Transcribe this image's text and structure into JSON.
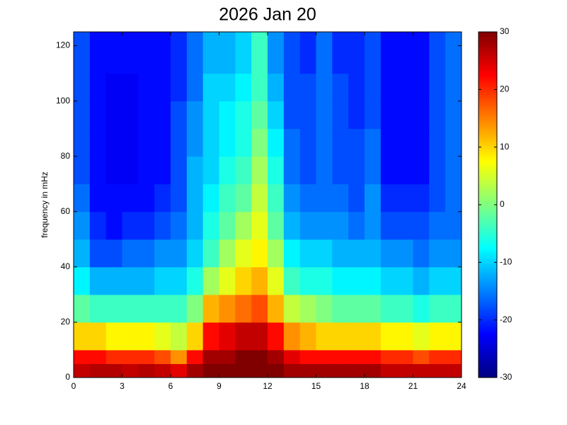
{
  "chart_data": {
    "type": "heatmap",
    "title": "2026 Jan 20",
    "ylabel": "frequency in mHz",
    "colormap": "jet",
    "xbins": [
      0,
      1,
      2,
      3,
      4,
      5,
      6,
      7,
      8,
      9,
      10,
      11,
      12,
      13,
      14,
      15,
      16,
      17,
      18,
      19,
      20,
      21,
      22,
      23,
      24
    ],
    "ybins": [
      0,
      5,
      10,
      20,
      30,
      40,
      50,
      60,
      70,
      80,
      90,
      100,
      110,
      125
    ],
    "values": [
      [
        26,
        22,
        10,
        -2,
        -8,
        -12,
        -14,
        -16,
        -18,
        -18,
        -18,
        -18,
        -18
      ],
      [
        27,
        22,
        10,
        -4,
        -12,
        -18,
        -20,
        -22,
        -22,
        -22,
        -22,
        -22,
        -22
      ],
      [
        27,
        20,
        8,
        -4,
        -12,
        -18,
        -22,
        -22,
        -23,
        -23,
        -23,
        -23,
        -22
      ],
      [
        26,
        20,
        8,
        -4,
        -12,
        -16,
        -20,
        -22,
        -23,
        -23,
        -23,
        -23,
        -22
      ],
      [
        27,
        20,
        8,
        -4,
        -12,
        -16,
        -20,
        -22,
        -22,
        -22,
        -22,
        -22,
        -22
      ],
      [
        26,
        18,
        6,
        -4,
        -10,
        -14,
        -18,
        -20,
        -22,
        -22,
        -22,
        -22,
        -22
      ],
      [
        24,
        14,
        4,
        -4,
        -10,
        -14,
        -16,
        -18,
        -18,
        -18,
        -18,
        -20,
        -20
      ],
      [
        28,
        22,
        10,
        0,
        -6,
        -10,
        -12,
        -12,
        -12,
        -14,
        -14,
        -16,
        -16
      ],
      [
        30,
        28,
        22,
        12,
        2,
        -4,
        -6,
        -8,
        -10,
        -10,
        -10,
        -10,
        -12
      ],
      [
        30,
        28,
        24,
        14,
        6,
        2,
        -2,
        -4,
        -6,
        -8,
        -8,
        -10,
        -12
      ],
      [
        30,
        30,
        26,
        16,
        10,
        6,
        2,
        -2,
        -4,
        -6,
        -6,
        -8,
        -10
      ],
      [
        30,
        30,
        26,
        18,
        12,
        8,
        6,
        4,
        2,
        0,
        -2,
        -4,
        -4
      ],
      [
        30,
        28,
        22,
        12,
        6,
        2,
        -2,
        -4,
        -6,
        -8,
        -10,
        -12,
        -14
      ],
      [
        28,
        24,
        14,
        4,
        -4,
        -8,
        -12,
        -14,
        -16,
        -16,
        -18,
        -18,
        -18
      ],
      [
        28,
        22,
        12,
        2,
        -6,
        -10,
        -14,
        -16,
        -18,
        -18,
        -18,
        -18,
        -20
      ],
      [
        28,
        22,
        10,
        0,
        -6,
        -10,
        -14,
        -16,
        -16,
        -16,
        -16,
        -16,
        -16
      ],
      [
        28,
        22,
        10,
        -2,
        -8,
        -12,
        -14,
        -16,
        -18,
        -18,
        -18,
        -18,
        -20
      ],
      [
        28,
        22,
        10,
        -2,
        -8,
        -12,
        -16,
        -18,
        -18,
        -18,
        -20,
        -20,
        -20
      ],
      [
        28,
        22,
        10,
        -2,
        -8,
        -12,
        -14,
        -14,
        -16,
        -16,
        -18,
        -18,
        -18
      ],
      [
        26,
        20,
        8,
        -4,
        -10,
        -14,
        -18,
        -20,
        -22,
        -22,
        -22,
        -22,
        -22
      ],
      [
        26,
        20,
        8,
        -4,
        -10,
        -14,
        -18,
        -20,
        -22,
        -22,
        -22,
        -22,
        -22
      ],
      [
        26,
        18,
        6,
        -6,
        -12,
        -16,
        -18,
        -20,
        -22,
        -22,
        -22,
        -22,
        -22
      ],
      [
        26,
        20,
        8,
        -4,
        -10,
        -14,
        -16,
        -18,
        -18,
        -18,
        -18,
        -18,
        -18
      ],
      [
        26,
        20,
        8,
        -4,
        -10,
        -14,
        -16,
        -16,
        -16,
        -16,
        -16,
        -16,
        -16
      ]
    ],
    "xlim": [
      0,
      24
    ],
    "xticks": [
      0,
      3,
      6,
      9,
      12,
      15,
      18,
      21,
      24
    ],
    "ylim": [
      0,
      125
    ],
    "yticks": [
      0,
      20,
      40,
      60,
      80,
      100,
      120
    ],
    "clim": [
      -30,
      30
    ],
    "cticks": [
      -30,
      -20,
      -10,
      0,
      10,
      20,
      30
    ]
  }
}
